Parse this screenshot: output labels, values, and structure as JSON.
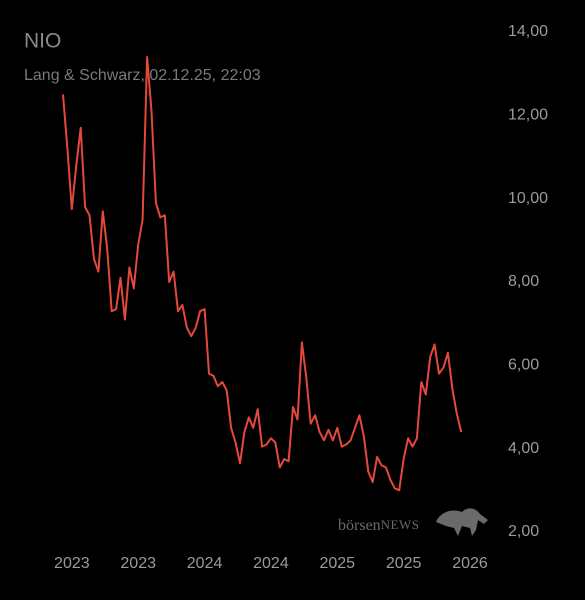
{
  "chart_data": {
    "type": "line",
    "title": "NIO",
    "subtitle": "Lang & Schwarz, 02.12.25, 22:03",
    "watermark": {
      "part1": "börsen",
      "part2": "NEWS"
    },
    "categories": [
      null,
      null,
      "2023",
      null,
      null,
      null,
      null,
      null,
      null,
      null,
      null,
      null,
      null,
      null,
      null,
      null,
      null,
      "2023",
      null,
      null,
      null,
      null,
      null,
      null,
      null,
      null,
      null,
      null,
      null,
      null,
      null,
      null,
      "2024",
      null,
      null,
      null,
      null,
      null,
      null,
      null,
      null,
      null,
      null,
      null,
      null,
      null,
      null,
      "2024",
      null,
      null,
      null,
      null,
      null,
      null,
      null,
      null,
      null,
      null,
      null,
      null,
      null,
      null,
      "2025",
      null,
      null,
      null,
      null,
      null,
      null,
      null,
      null,
      null,
      null,
      null,
      null,
      null,
      null,
      "2025",
      null,
      null,
      null,
      null,
      null,
      null,
      null,
      null,
      null,
      null,
      null,
      null,
      null,
      null,
      "2026"
    ],
    "series": [
      {
        "name": "NIO",
        "color": "#e5483c",
        "values": [
          12.5,
          11.2,
          9.75,
          10.8,
          11.7,
          9.8,
          9.6,
          8.55,
          8.25,
          9.7,
          8.8,
          7.3,
          7.35,
          8.1,
          7.1,
          8.35,
          7.85,
          8.9,
          9.5,
          13.4,
          12.1,
          9.9,
          9.55,
          9.6,
          8.0,
          8.25,
          7.3,
          7.45,
          6.9,
          6.7,
          6.9,
          7.3,
          7.35,
          5.8,
          5.75,
          5.5,
          5.6,
          5.4,
          4.5,
          4.15,
          3.65,
          4.4,
          4.75,
          4.5,
          4.95,
          4.05,
          4.1,
          4.25,
          4.15,
          3.55,
          3.75,
          3.7,
          5.0,
          4.7,
          6.55,
          5.7,
          4.6,
          4.8,
          4.4,
          4.2,
          4.45,
          4.2,
          4.5,
          4.05,
          4.1,
          4.2,
          4.5,
          4.8,
          4.3,
          3.45,
          3.2,
          3.8,
          3.6,
          3.55,
          3.25,
          3.05,
          3.0,
          3.75,
          4.25,
          4.05,
          4.25,
          5.6,
          5.3,
          6.2,
          6.5,
          5.8,
          5.95,
          6.3,
          5.45,
          4.85,
          4.4,
          null,
          null
        ]
      }
    ],
    "ylim": [
      2,
      14
    ],
    "yticks": [
      {
        "value": 2,
        "label": "2,00"
      },
      {
        "value": 4,
        "label": "4,00"
      },
      {
        "value": 6,
        "label": "6,00"
      },
      {
        "value": 8,
        "label": "8,00"
      },
      {
        "value": 10,
        "label": "10,00"
      },
      {
        "value": 12,
        "label": "12,00"
      },
      {
        "value": 14,
        "label": "14,00"
      }
    ],
    "grid": false
  }
}
